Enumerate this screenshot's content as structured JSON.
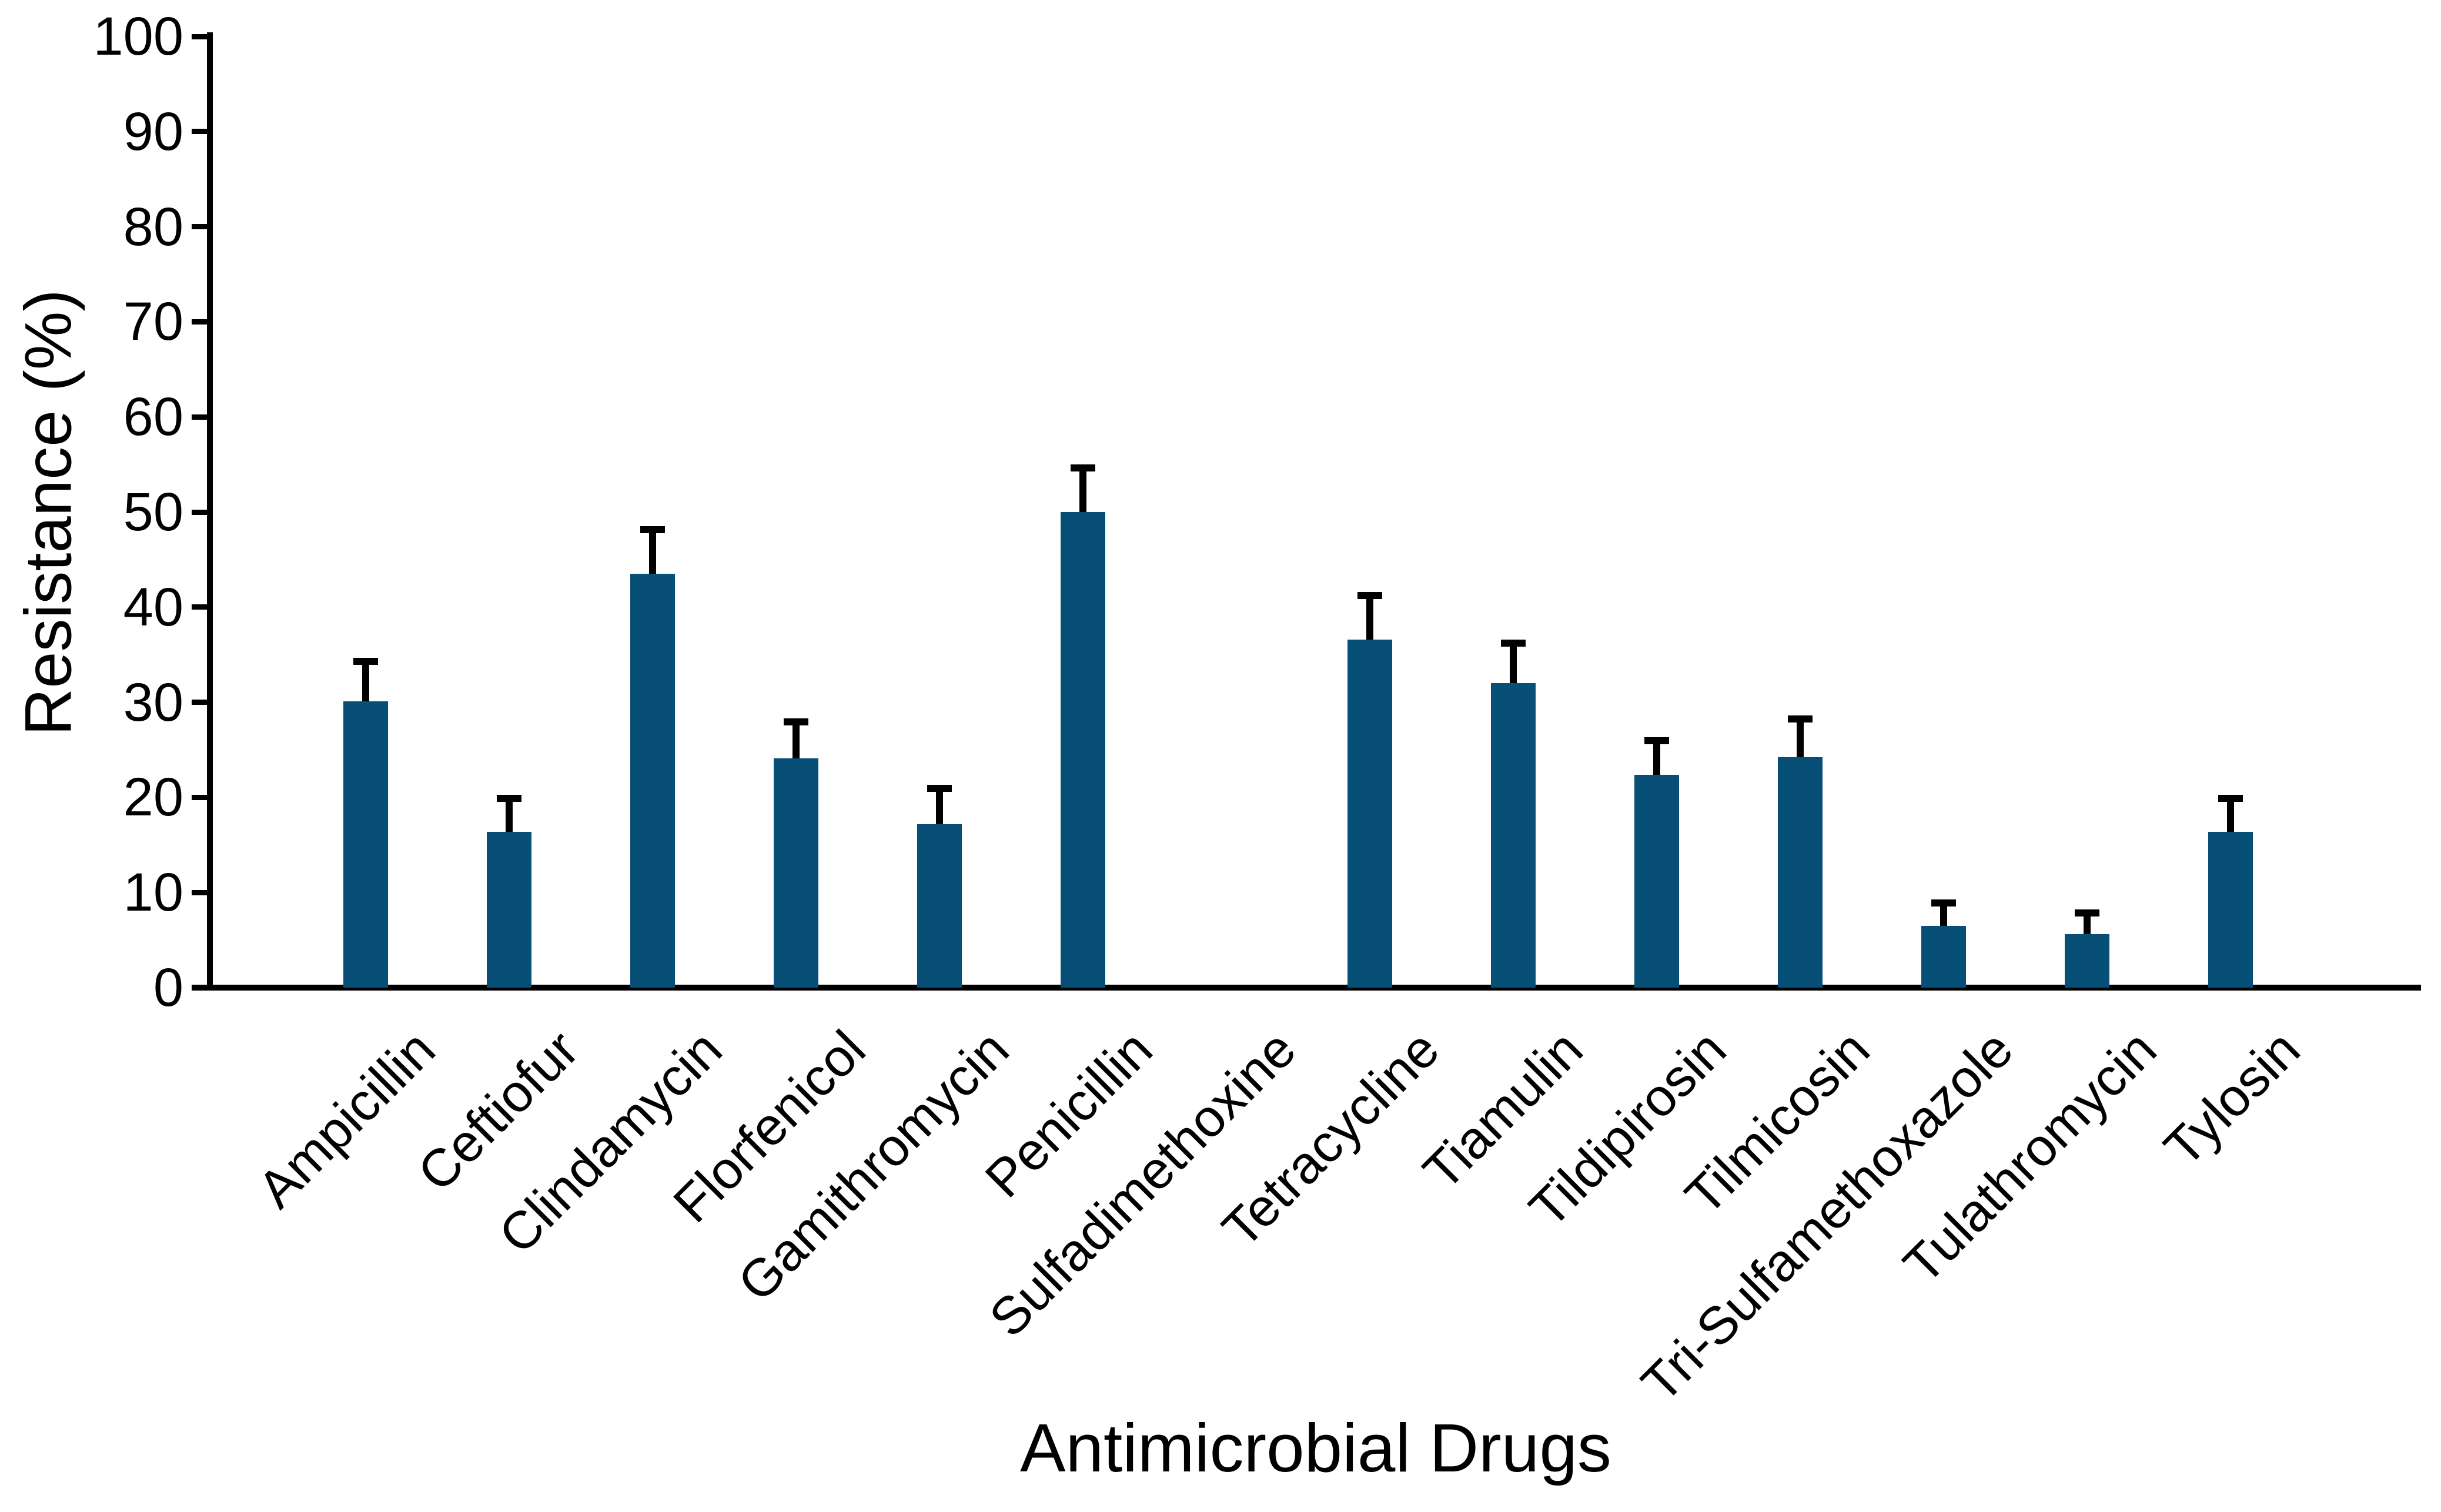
{
  "figure": {
    "y_axis_title": "Resistance (%)",
    "x_axis_title": "Antimicrobial Drugs"
  },
  "colors": {
    "bar_fill": "#084F78",
    "error_bar": "#000000",
    "axis": "#000000",
    "background": "#ffffff"
  },
  "chart_data": {
    "type": "bar",
    "title": "",
    "xlabel": "Antimicrobial Drugs",
    "ylabel": "Resistance (%)",
    "ylim": [
      0,
      100
    ],
    "yticks": [
      0,
      10,
      20,
      30,
      40,
      50,
      60,
      70,
      80,
      90,
      100
    ],
    "grid": false,
    "legend": "none",
    "error_bars": "upper",
    "categories": [
      "Ampicillin",
      "Ceftiofur",
      "Clindamycin",
      "Florfenicol",
      "Gamithromycin",
      "Penicillin",
      "Sulfadimethoxine",
      "Tetracycline",
      "Tiamulin",
      "Tildipirosin",
      "Tilmicosin",
      "Tri-Sulfamethoxazole",
      "Tulathromycin",
      "Tylosin"
    ],
    "values": [
      30.1,
      16.4,
      43.5,
      24.1,
      17.2,
      50.0,
      0,
      36.6,
      32.0,
      22.4,
      24.2,
      6.5,
      5.6,
      16.4
    ],
    "errors_upper": [
      4.6,
      3.9,
      5.0,
      4.2,
      4.1,
      5.0,
      0,
      5.0,
      4.6,
      3.9,
      4.4,
      2.8,
      2.6,
      3.9
    ]
  }
}
